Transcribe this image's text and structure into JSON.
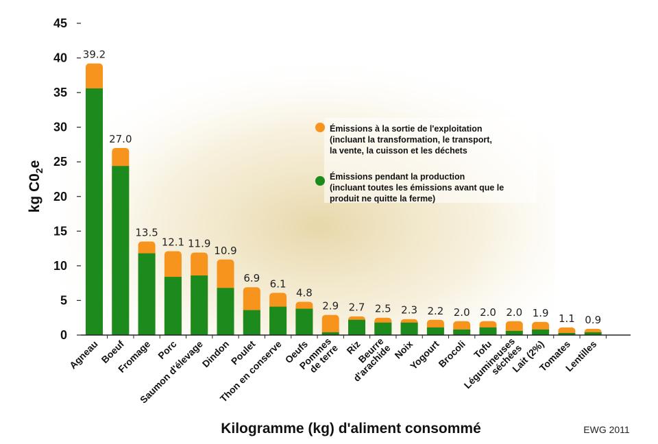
{
  "chart_data": {
    "type": "bar",
    "stacked": true,
    "ylabel": "kg C0₂e",
    "ylabel_parts": {
      "base": "kg C0",
      "sub": "2",
      "suffix": "e"
    },
    "xlabel": "Kilogramme (kg) d'aliment consommé",
    "source": "EWG 2011",
    "ylim": [
      0,
      45
    ],
    "yticks": [
      "0",
      "5",
      "10",
      "15",
      "20",
      "25",
      "30",
      "35",
      "40",
      "45"
    ],
    "legend_position": "top-right",
    "categories": [
      [
        "Agneau"
      ],
      [
        "Boeuf"
      ],
      [
        "Fromage"
      ],
      [
        "Porc"
      ],
      [
        "Saumon d'élevage"
      ],
      [
        "Dindon"
      ],
      [
        "Poulet"
      ],
      [
        "Thon en conserve"
      ],
      [
        "Oeufs"
      ],
      [
        "Pommes",
        "de terre"
      ],
      [
        "Riz"
      ],
      [
        "Beurre",
        "d'arachide"
      ],
      [
        "Noix"
      ],
      [
        "Yogourt"
      ],
      [
        "Brocoli"
      ],
      [
        "Tofu"
      ],
      [
        "Légumineuses",
        "séchées"
      ],
      [
        "Lait (2%)"
      ],
      [
        "Tomates"
      ],
      [
        "Lentilles"
      ]
    ],
    "totals_labels": [
      "39.2",
      "27.0",
      "13.5",
      "12.1",
      "11.9",
      "10.9",
      "6.9",
      "6.1",
      "4.8",
      "2.9",
      "2.7",
      "2.5",
      "2.3",
      "2.2",
      "2.0",
      "2.0",
      "2.0",
      "1.9",
      "1.1",
      "0.9"
    ],
    "series": [
      {
        "name": "Émissions pendant la production (incluant toutes les émissions avant que le produit ne quitte la ferme)",
        "legend_lines": [
          "Émissions pendant la production",
          "(incluant toutes les émissions avant que le",
          "produit ne quitte la ferme)"
        ],
        "color": "#1c8a1c",
        "values": [
          35.6,
          24.4,
          11.8,
          8.4,
          8.6,
          6.8,
          3.6,
          4.1,
          3.8,
          0.4,
          2.2,
          1.8,
          1.8,
          1.1,
          0.8,
          1.1,
          0.6,
          0.8,
          0.3,
          0.4
        ]
      },
      {
        "name": "Émissions à la sortie de l'exploitation (incluant la transformation, le transport, la vente, la cuisson et les déchets",
        "legend_lines": [
          "Émissions à la sortie de l'exploitation",
          "(incluant la transformation, le transport,",
          "la vente, la cuisson et les déchets"
        ],
        "color": "#f7941e",
        "values": [
          3.6,
          2.6,
          1.7,
          3.7,
          3.3,
          4.1,
          3.3,
          2.0,
          1.0,
          2.5,
          0.5,
          0.7,
          0.5,
          1.1,
          1.2,
          0.9,
          1.4,
          1.1,
          0.8,
          0.5
        ]
      }
    ]
  }
}
